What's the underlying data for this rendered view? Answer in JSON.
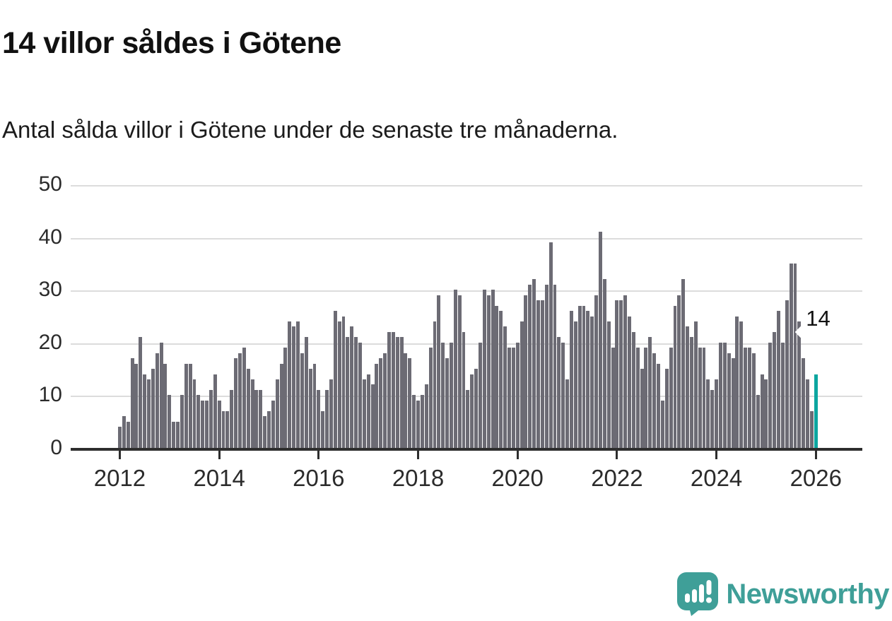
{
  "title": "14 villor såldes i Götene",
  "subtitle": "Antal sålda villor i Götene under de senaste tre månaderna.",
  "annotation": {
    "label": "14"
  },
  "branding": {
    "name": "Newsworthy",
    "icon": "bar-chart-speech-bubble-icon"
  },
  "colors": {
    "bar": "#6c6b74",
    "highlight": "#0ca6a0",
    "axis": "#2e2e2e",
    "grid": "#dcdcdc",
    "text": "#1a1a1a",
    "brand": "#3f9f98"
  },
  "chart_data": {
    "type": "bar",
    "title": "14 villor såldes i Götene",
    "subtitle": "Antal sålda villor i Götene under de senaste tre månaderna.",
    "x_start": "2012-01",
    "frequency": "monthly",
    "x_tick_labels": [
      "2012",
      "2014",
      "2016",
      "2018",
      "2020",
      "2022",
      "2024",
      "2026"
    ],
    "y_ticks": [
      0,
      10,
      20,
      30,
      40,
      50
    ],
    "ylim": [
      0,
      50
    ],
    "grid": true,
    "legend": "none",
    "highlight_last_value": 14,
    "values": [
      4,
      6,
      5,
      17,
      16,
      21,
      14,
      13,
      15,
      18,
      20,
      16,
      10,
      5,
      5,
      10,
      16,
      16,
      13,
      10,
      9,
      9,
      11,
      14,
      9,
      7,
      7,
      11,
      17,
      18,
      19,
      15,
      13,
      11,
      11,
      6,
      7,
      9,
      13,
      16,
      19,
      24,
      23,
      24,
      18,
      21,
      15,
      16,
      11,
      7,
      11,
      13,
      26,
      24,
      25,
      21,
      23,
      21,
      20,
      13,
      14,
      12,
      16,
      17,
      18,
      22,
      22,
      21,
      21,
      18,
      17,
      10,
      9,
      10,
      12,
      19,
      24,
      29,
      20,
      17,
      20,
      30,
      29,
      22,
      11,
      14,
      15,
      20,
      30,
      29,
      30,
      27,
      26,
      23,
      19,
      19,
      20,
      24,
      29,
      31,
      32,
      28,
      28,
      31,
      39,
      31,
      21,
      20,
      13,
      26,
      24,
      27,
      27,
      26,
      25,
      29,
      41,
      32,
      24,
      19,
      28,
      28,
      29,
      25,
      22,
      19,
      15,
      19,
      21,
      18,
      16,
      9,
      15,
      19,
      27,
      29,
      32,
      23,
      21,
      24,
      19,
      19,
      13,
      11,
      13,
      20,
      20,
      18,
      17,
      25,
      24,
      19,
      19,
      18,
      10,
      14,
      13,
      20,
      22,
      26,
      20,
      28,
      35,
      35,
      24,
      17,
      13,
      7,
      14
    ]
  }
}
